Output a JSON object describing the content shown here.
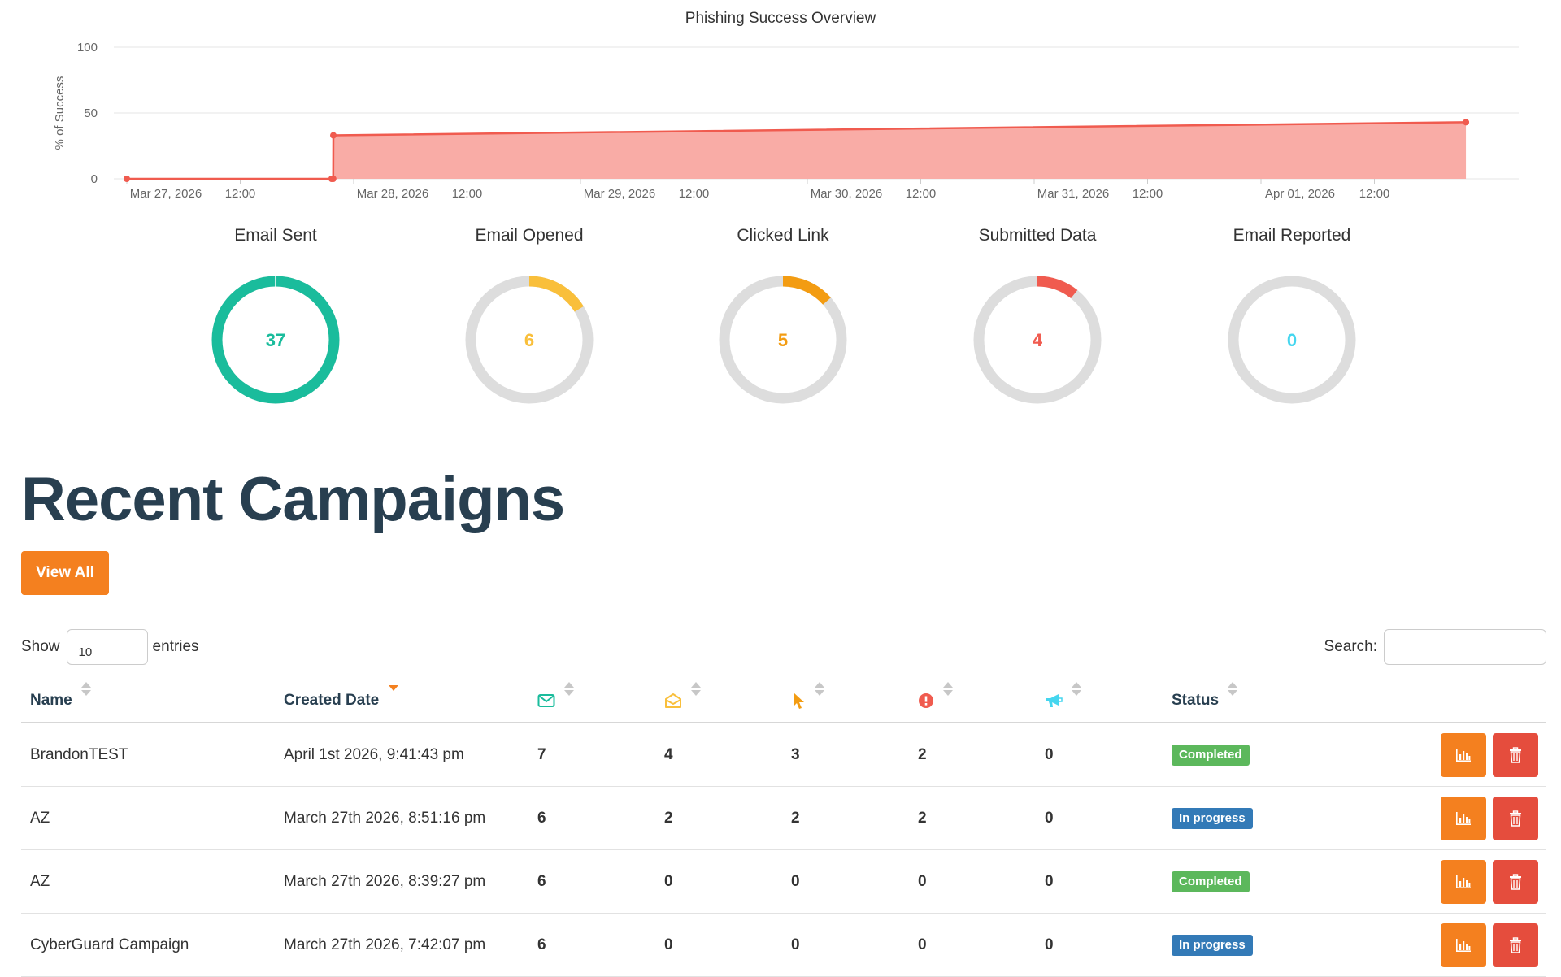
{
  "chart_data": [
    {
      "type": "area",
      "title": "Phishing Success Overview",
      "ylabel": "% of Success",
      "xlabel": "",
      "ylim": [
        0,
        100
      ],
      "yticks": [
        "0",
        "50",
        "100"
      ],
      "xticks": [
        "Mar 27, 2026",
        "12:00",
        "Mar 28, 2026",
        "12:00",
        "Mar 29, 2026",
        "12:00",
        "Mar 30, 2026",
        "12:00",
        "Mar 31, 2026",
        "12:00",
        "Apr 01, 2026",
        "12:00"
      ],
      "grid": true,
      "color": "#f05b4f",
      "fill": "#f9aca6",
      "points": [
        {
          "x": "2026-03-27T00:00",
          "y": 0
        },
        {
          "x": "2026-03-27T21:40",
          "y": 0
        },
        {
          "x": "2026-03-27T21:50",
          "y": 0
        },
        {
          "x": "2026-03-27T21:51",
          "y": 33
        },
        {
          "x": "2026-04-01T21:41",
          "y": 43
        }
      ]
    },
    {
      "type": "pie",
      "title": "Email Sent",
      "value": 37,
      "total": 37,
      "color": "#1abc9c"
    },
    {
      "type": "pie",
      "title": "Email Opened",
      "value": 6,
      "total": 37,
      "color": "#f9bf3b"
    },
    {
      "type": "pie",
      "title": "Clicked Link",
      "value": 5,
      "total": 37,
      "color": "#f39c12"
    },
    {
      "type": "pie",
      "title": "Submitted Data",
      "value": 4,
      "total": 37,
      "color": "#f05b4f"
    },
    {
      "type": "pie",
      "title": "Email Reported",
      "value": 0,
      "total": 37,
      "color": "#45d6ef"
    }
  ],
  "section_title": "Recent Campaigns",
  "view_all_label": "View All",
  "table_controls": {
    "show_label": "Show",
    "entries_value": "10",
    "entries_label": "entries",
    "search_label": "Search:"
  },
  "table": {
    "headers": {
      "name": "Name",
      "created_date": "Created Date",
      "sent_icon": "envelope-icon",
      "opened_icon": "envelope-open-icon",
      "clicked_icon": "mouse-pointer-icon",
      "submitted_icon": "exclamation-circle-icon",
      "reported_icon": "bullhorn-icon",
      "status": "Status"
    },
    "rows": [
      {
        "name": "BrandonTEST",
        "created": "April 1st 2026, 9:41:43 pm",
        "sent": "7",
        "opened": "4",
        "clicked": "3",
        "submitted": "2",
        "reported": "0",
        "status": "Completed"
      },
      {
        "name": "AZ",
        "created": "March 27th 2026, 8:51:16 pm",
        "sent": "6",
        "opened": "2",
        "clicked": "2",
        "submitted": "2",
        "reported": "0",
        "status": "In progress"
      },
      {
        "name": "AZ",
        "created": "March 27th 2026, 8:39:27 pm",
        "sent": "6",
        "opened": "0",
        "clicked": "0",
        "submitted": "0",
        "reported": "0",
        "status": "Completed"
      },
      {
        "name": "CyberGuard Campaign",
        "created": "March 27th 2026, 7:42:07 pm",
        "sent": "6",
        "opened": "0",
        "clicked": "0",
        "submitted": "0",
        "reported": "0",
        "status": "In progress"
      }
    ]
  },
  "colors": {
    "accent": "#f4801f",
    "danger": "#e54d3d",
    "completed": "#5cb85c",
    "in_progress": "#337ab7",
    "heading": "#283f50"
  }
}
